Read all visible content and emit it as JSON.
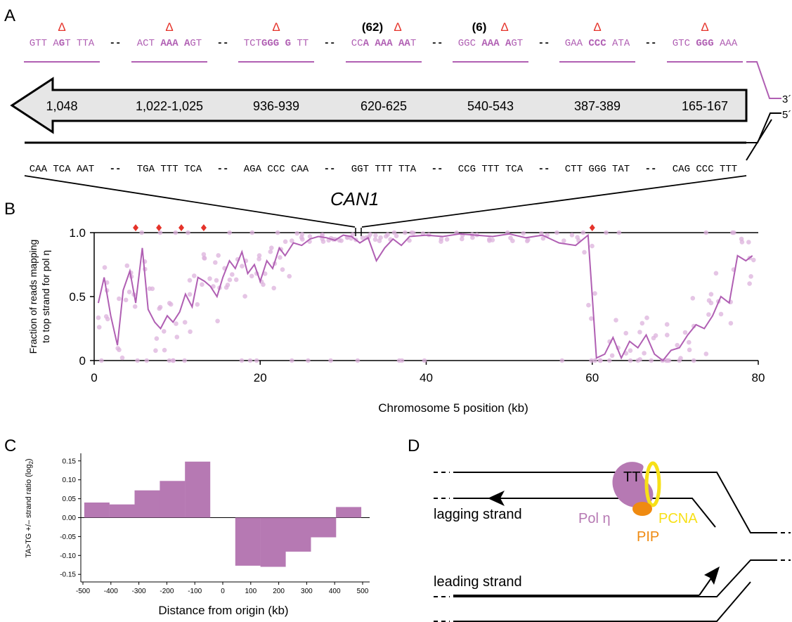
{
  "colors": {
    "purple": "#b05fb3",
    "purple_light": "#dcb2dc",
    "red": "#e5332a",
    "bar": "#b679b3",
    "yellow": "#f7e017",
    "orange": "#ef8a11",
    "gray_arrow": "#e6e6e6"
  },
  "panel_a": {
    "label": "A",
    "delta": "Δ",
    "counts": [
      "(62)",
      "(6)"
    ],
    "top_seqs": [
      [
        {
          "t": "GTT A",
          "b": false
        },
        {
          "t": "G",
          "b": true
        },
        {
          "t": "T TTA",
          "b": false
        }
      ],
      [
        {
          "t": "ACT ",
          "b": false
        },
        {
          "t": "AAA A",
          "b": true
        },
        {
          "t": "GT",
          "b": false
        }
      ],
      [
        {
          "t": "TCT",
          "b": false
        },
        {
          "t": "GGG G",
          "b": true
        },
        {
          "t": " TT",
          "b": false
        }
      ],
      [
        {
          "t": "CC",
          "b": false
        },
        {
          "t": "A AAA AA",
          "b": true
        },
        {
          "t": "T",
          "b": false
        }
      ],
      [
        {
          "t": "GGC ",
          "b": false
        },
        {
          "t": "AAA A",
          "b": true
        },
        {
          "t": "GT",
          "b": false
        }
      ],
      [
        {
          "t": "GAA ",
          "b": false
        },
        {
          "t": "CCC",
          "b": true
        },
        {
          "t": " ATA",
          "b": false
        }
      ],
      [
        {
          "t": "GTC ",
          "b": false
        },
        {
          "t": "GGG",
          "b": true
        },
        {
          "t": " AAA",
          "b": false
        }
      ]
    ],
    "gap": "--",
    "positions": [
      "1,048",
      "1,022-1,025",
      "936-939",
      "620-625",
      "540-543",
      "387-389",
      "165-167"
    ],
    "bottom_seqs": [
      "CAA TCA AAT",
      "TGA TTT TCA",
      "AGA CCC CAA",
      "GGT TTT TTA",
      "CCG TTT TCA",
      "CTT GGG TAT",
      "CAG CCC TTT"
    ],
    "end3": "3´",
    "end5": "5´",
    "gene": "CAN1"
  },
  "panel_b": {
    "label": "B",
    "ylabel_line1": "Fraction of reads mapping",
    "ylabel_line2": "to top strand for pol η",
    "xlabel": "Chromosome 5 position (kb)",
    "yticks": [
      "0",
      "0.5",
      "1.0"
    ],
    "xticks": [
      "0",
      "20",
      "40",
      "60",
      "80"
    ]
  },
  "chart_data": [
    {
      "type": "line",
      "xlabel": "Chromosome 5 position (kb)",
      "ylabel": "Fraction of reads mapping to top strand for pol η",
      "xlim": [
        0,
        80
      ],
      "ylim": [
        0,
        1.0
      ],
      "grid": false,
      "series": [
        {
          "x": [
            0.5,
            1.2,
            2.0,
            2.8,
            3.5,
            4.3,
            5.0,
            5.8,
            6.5,
            7.3,
            8.0,
            8.8,
            9.5,
            10.3,
            11.0,
            11.8,
            12.5,
            13.3,
            14.0,
            14.8,
            15.5,
            16.3,
            17.0,
            17.8,
            18.5,
            19.3,
            20.0,
            20.8,
            21.5,
            22.3,
            23.0,
            24.0,
            25.0,
            26.0,
            27.0,
            28.0,
            29.0,
            30.0,
            31.0,
            32.0,
            33.0,
            34.0,
            35.0,
            36.0,
            37.0,
            38.0,
            40.0,
            42.0,
            44.0,
            46.0,
            48.0,
            50.0,
            52.0,
            54.0,
            56.0,
            58.0,
            59.5,
            60.0,
            60.5,
            61.5,
            62.5,
            63.5,
            64.5,
            65.5,
            66.5,
            67.5,
            68.5,
            69.5,
            70.5,
            71.5,
            72.5,
            73.5,
            74.5,
            75.5,
            76.5,
            77.5,
            78.5,
            79.3
          ],
          "y": [
            0.45,
            0.65,
            0.35,
            0.12,
            0.55,
            0.7,
            0.45,
            0.88,
            0.4,
            0.3,
            0.25,
            0.35,
            0.3,
            0.38,
            0.52,
            0.42,
            0.65,
            0.62,
            0.58,
            0.5,
            0.65,
            0.78,
            0.72,
            0.85,
            0.68,
            0.75,
            0.62,
            0.78,
            0.72,
            0.88,
            0.82,
            0.92,
            0.9,
            0.95,
            0.97,
            0.96,
            0.94,
            0.98,
            0.97,
            0.92,
            0.96,
            0.78,
            0.88,
            0.95,
            0.9,
            0.97,
            0.98,
            0.97,
            0.99,
            0.98,
            0.97,
            0.99,
            0.96,
            0.98,
            0.92,
            0.9,
            0.98,
            0.5,
            0.02,
            0.05,
            0.18,
            0.02,
            0.15,
            0.1,
            0.2,
            0.05,
            0.0,
            0.08,
            0.1,
            0.2,
            0.28,
            0.25,
            0.35,
            0.5,
            0.45,
            0.82,
            0.78,
            0.82
          ]
        }
      ],
      "markers_x_kb": [
        5.0,
        7.8,
        10.5,
        13.2,
        60.0
      ]
    },
    {
      "type": "bar",
      "xlabel": "Distance from origin (kb)",
      "ylabel": "TA>TG +/– strand ratio (log2)",
      "ylim": [
        -0.17,
        0.17
      ],
      "grid": false,
      "categories": [
        "-450",
        "-360",
        "-270",
        "-180",
        "-90",
        "0",
        "90",
        "180",
        "270",
        "360",
        "450"
      ],
      "values": [
        0.04,
        0.035,
        0.072,
        0.097,
        0.148,
        null,
        -0.127,
        -0.13,
        -0.09,
        -0.052,
        0.028
      ]
    }
  ],
  "panel_c": {
    "label": "C",
    "ylabel": "TA>TG +/– strand ratio (log",
    "ylabel_sub": "2",
    "ylabel_end": ")",
    "xlabel": "Distance from origin (kb)",
    "yticks": [
      "0.15",
      "0.10",
      "0.05",
      "0.00",
      "-0.05",
      "-0.10",
      "-0.15"
    ],
    "xticks": [
      "-500",
      "-400",
      "-300",
      "-200",
      "-100",
      "0",
      "100",
      "200",
      "300",
      "400",
      "500"
    ]
  },
  "panel_d": {
    "label": "D",
    "tt": "TT",
    "lagging": "lagging strand",
    "leading": "leading strand",
    "pol": "Pol η",
    "pcna": "PCNA",
    "pip": "PIP"
  }
}
